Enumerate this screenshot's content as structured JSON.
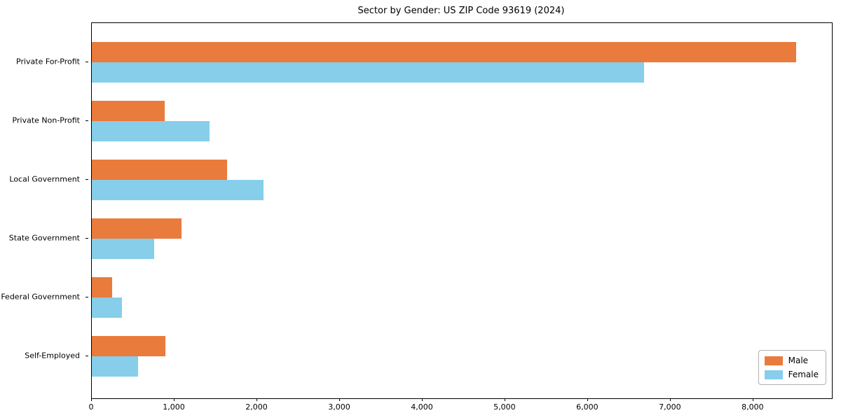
{
  "chart_data": {
    "type": "bar",
    "orientation": "horizontal",
    "title": "Sector by Gender: US ZIP Code 93619 (2024)",
    "categories": [
      "Private For-Profit",
      "Private Non-Profit",
      "Local Government",
      "State Government",
      "Federal Government",
      "Self-Employed"
    ],
    "series": [
      {
        "name": "Male",
        "color": "#E97B3C",
        "values": [
          8520,
          880,
          1635,
          1085,
          245,
          890
        ]
      },
      {
        "name": "Female",
        "color": "#87CEEB",
        "values": [
          6680,
          1425,
          2075,
          755,
          365,
          560
        ]
      }
    ],
    "xlim": [
      0,
      8950
    ],
    "xticks": [
      0,
      1000,
      2000,
      3000,
      4000,
      5000,
      6000,
      7000,
      8000
    ],
    "xtick_labels": [
      "0",
      "1,000",
      "2,000",
      "3,000",
      "4,000",
      "5,000",
      "6,000",
      "7,000",
      "8,000"
    ],
    "grid": false,
    "legend_position": "lower-right",
    "axis_color": "#000000",
    "background_color": "#ffffff"
  }
}
